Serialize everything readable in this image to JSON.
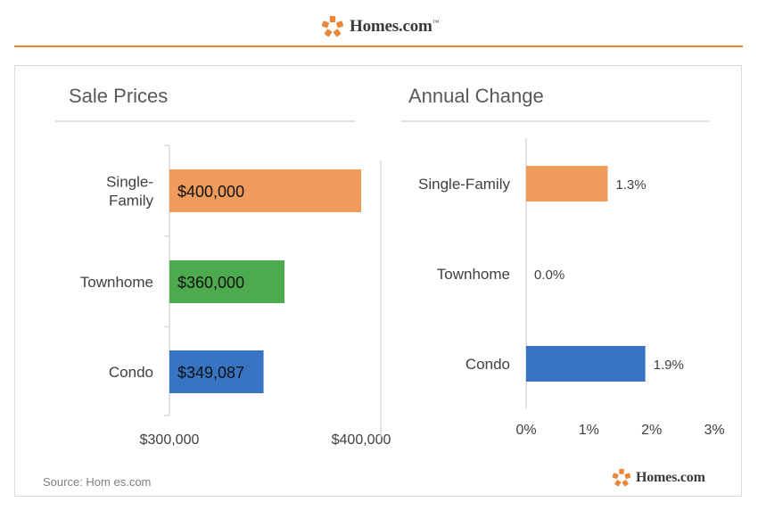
{
  "brand": {
    "name": "Homes.com",
    "tm": "™",
    "orange": "#e8873a"
  },
  "source_text": "Source: Hom es.com",
  "chart_data": [
    {
      "type": "bar",
      "orientation": "horizontal",
      "title": "Sale Prices",
      "categories": [
        "Single-Family",
        "Townhome",
        "Condo"
      ],
      "category_lines": [
        [
          "Single-",
          "Family"
        ],
        [
          "Townhome"
        ],
        [
          "Condo"
        ]
      ],
      "values": [
        400000,
        360000,
        349087
      ],
      "data_labels": [
        "$400,000",
        "$360,000",
        "$349,087"
      ],
      "colors": [
        "#ee9b5b",
        "#4eaa4e",
        "#3874c4"
      ],
      "xlim": [
        300000,
        400000
      ],
      "x_ticks": [
        300000,
        400000
      ],
      "x_tick_labels": [
        "$300,000",
        "$400,000"
      ],
      "grid": false
    },
    {
      "type": "bar",
      "orientation": "horizontal",
      "title": "Annual Change",
      "categories": [
        "Single-Family",
        "Townhome",
        "Condo"
      ],
      "category_lines": [
        [
          "Single-Family"
        ],
        [
          "Townhome"
        ],
        [
          "Condo"
        ]
      ],
      "values": [
        1.3,
        0.0,
        1.9
      ],
      "data_labels": [
        "1.3%",
        "0.0%",
        "1.9%"
      ],
      "colors": [
        "#ee9b5b",
        "#4eaa4e",
        "#3874c4"
      ],
      "xlim": [
        0,
        3
      ],
      "x_ticks": [
        0,
        1,
        2,
        3
      ],
      "x_tick_labels": [
        "0%",
        "1%",
        "2%",
        "3%"
      ],
      "grid": false
    }
  ]
}
